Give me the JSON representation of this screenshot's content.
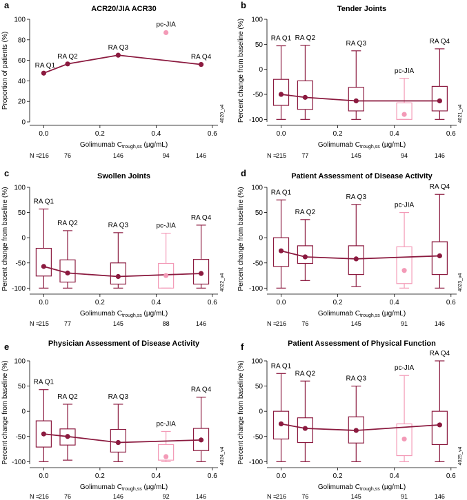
{
  "colors": {
    "ra": "#8b1a3f",
    "pcjia": "#f39ab7",
    "axis": "#000000"
  },
  "chart_data": [
    {
      "letter": "a",
      "type": "line",
      "title": "ACR20/JIA ACR30",
      "ylabel": "Proportion of patients (%)",
      "xlabel_main": "Golimumab C",
      "xlabel_sub": "trough,ss",
      "xlabel_unit": " (µg/mL)",
      "xlim": [
        -0.05,
        0.62
      ],
      "ylim": [
        0,
        100
      ],
      "xticks": [
        0.0,
        0.2,
        0.4,
        0.6
      ],
      "xtick_labels": [
        "0.0",
        "0.2",
        "0.4",
        "0.6"
      ],
      "yticks": [
        0,
        20,
        40,
        60,
        80,
        100
      ],
      "code": "4020_v4",
      "n_label": "N =",
      "ra_groups": [
        {
          "label": "RA Q1",
          "x": 0.0,
          "value": 47.5,
          "n": "216"
        },
        {
          "label": "RA Q2",
          "x": 0.085,
          "value": 56.5,
          "n": "76"
        },
        {
          "label": "RA Q3",
          "x": 0.265,
          "value": 65.0,
          "n": "146"
        },
        {
          "label": "RA Q4",
          "x": 0.56,
          "value": 56.0,
          "n": "146"
        }
      ],
      "pcjia": {
        "label": "pc-JIA",
        "x": 0.435,
        "value": 87.0,
        "n": "94"
      }
    },
    {
      "letter": "b",
      "type": "box",
      "title": "Tender Joints",
      "ylabel": "Percent change from baseline (%)",
      "xlabel_main": "Golimumab C",
      "xlabel_sub": "trough,ss",
      "xlabel_unit": " (µg/mL)",
      "xlim": [
        -0.05,
        0.62
      ],
      "ylim": [
        -105,
        100
      ],
      "xticks": [
        0.0,
        0.2,
        0.4,
        0.6
      ],
      "xtick_labels": [
        "0.0",
        "0.2",
        "0.4",
        "0.6"
      ],
      "yticks": [
        -100,
        -50,
        0,
        50,
        100
      ],
      "code": "4021_v4",
      "n_label": "N =",
      "ra_groups": [
        {
          "label": "RA Q1",
          "x": 0.0,
          "min": -100,
          "q1": -72,
          "median": -50,
          "q3": -20,
          "max": 47,
          "n": "215"
        },
        {
          "label": "RA Q2",
          "x": 0.085,
          "min": -100,
          "q1": -80,
          "median": -56,
          "q3": -23,
          "max": 48,
          "n": "77"
        },
        {
          "label": "RA Q3",
          "x": 0.265,
          "min": -100,
          "q1": -83,
          "median": -63,
          "q3": -36,
          "max": 37,
          "n": "145"
        },
        {
          "label": "RA Q4",
          "x": 0.56,
          "min": -100,
          "q1": -83,
          "median": -63,
          "q3": -34,
          "max": 41,
          "n": "146"
        }
      ],
      "pcjia": {
        "label": "pc-JIA",
        "x": 0.435,
        "min": -100,
        "q1": -100,
        "median": -90,
        "q3": -67,
        "max": -18,
        "n": "94"
      }
    },
    {
      "letter": "c",
      "type": "box",
      "title": "Swollen Joints",
      "ylabel": "Percent change from baseline (%)",
      "xlabel_main": "Golimumab C",
      "xlabel_sub": "trough,ss",
      "xlabel_unit": " (µg/mL)",
      "xlim": [
        -0.05,
        0.62
      ],
      "ylim": [
        -105,
        100
      ],
      "xticks": [
        0.0,
        0.2,
        0.4,
        0.6
      ],
      "xtick_labels": [
        "0.0",
        "0.2",
        "0.4",
        "0.6"
      ],
      "yticks": [
        -100,
        -50,
        0,
        50,
        100
      ],
      "code": "4022_v4",
      "n_label": "N =",
      "ra_groups": [
        {
          "label": "RA Q1",
          "x": 0.0,
          "min": -100,
          "q1": -76,
          "median": -57,
          "q3": -21,
          "max": 57,
          "n": "215"
        },
        {
          "label": "RA Q2",
          "x": 0.085,
          "min": -100,
          "q1": -88,
          "median": -70,
          "q3": -44,
          "max": 14,
          "n": "77"
        },
        {
          "label": "RA Q3",
          "x": 0.265,
          "min": -100,
          "q1": -92,
          "median": -77,
          "q3": -50,
          "max": 10,
          "n": "145"
        },
        {
          "label": "RA Q4",
          "x": 0.56,
          "min": -100,
          "q1": -92,
          "median": -71,
          "q3": -43,
          "max": 25,
          "n": "146"
        }
      ],
      "pcjia": {
        "label": "pc-JIA",
        "x": 0.435,
        "min": -100,
        "q1": -100,
        "median": -75,
        "q3": -51,
        "max": 9,
        "n": "88"
      }
    },
    {
      "letter": "d",
      "type": "box",
      "title": "Patient Assessment of Disease Activity",
      "ylabel": "Percent change from baseline (%)",
      "xlabel_main": "Golimumab C",
      "xlabel_sub": "trough,ss",
      "xlabel_unit": " (µg/mL)",
      "xlim": [
        -0.05,
        0.62
      ],
      "ylim": [
        -105,
        100
      ],
      "xticks": [
        0.0,
        0.2,
        0.4,
        0.6
      ],
      "xtick_labels": [
        "0.0",
        "0.2",
        "0.4",
        "0.6"
      ],
      "yticks": [
        -100,
        -50,
        0,
        50,
        100
      ],
      "code": "4023_v4",
      "n_label": "N =",
      "ra_groups": [
        {
          "label": "RA Q1",
          "x": 0.0,
          "min": -100,
          "q1": -57,
          "median": -26,
          "q3": 0,
          "max": 75,
          "n": "216"
        },
        {
          "label": "RA Q2",
          "x": 0.085,
          "min": -85,
          "q1": -51,
          "median": -38,
          "q3": -16,
          "max": 36,
          "n": "76"
        },
        {
          "label": "RA Q3",
          "x": 0.265,
          "min": -97,
          "q1": -73,
          "median": -42,
          "q3": -16,
          "max": 66,
          "n": "145"
        },
        {
          "label": "RA Q4",
          "x": 0.56,
          "min": -100,
          "q1": -73,
          "median": -36,
          "q3": -8,
          "max": 86,
          "n": "146"
        }
      ],
      "pcjia": {
        "label": "pc-JIA",
        "x": 0.435,
        "min": -100,
        "q1": -91,
        "median": -65,
        "q3": -18,
        "max": 50,
        "n": "91"
      }
    },
    {
      "letter": "e",
      "type": "box",
      "title": "Physician Assessment of Disease Activity",
      "ylabel": "Percent change from baseline (%)",
      "xlabel_main": "Golimumab C",
      "xlabel_sub": "trough,ss",
      "xlabel_unit": " (µg/mL)",
      "xlim": [
        -0.05,
        0.62
      ],
      "ylim": [
        -105,
        100
      ],
      "xticks": [
        0.0,
        0.2,
        0.4,
        0.6
      ],
      "xtick_labels": [
        "0.0",
        "0.2",
        "0.4",
        "0.6"
      ],
      "yticks": [
        -100,
        -50,
        0,
        50,
        100
      ],
      "code": "4024_v4",
      "n_label": "N =",
      "ra_groups": [
        {
          "label": "RA Q1",
          "x": 0.0,
          "min": -100,
          "q1": -71,
          "median": -45,
          "q3": -19,
          "max": 43,
          "n": "216"
        },
        {
          "label": "RA Q2",
          "x": 0.085,
          "min": -97,
          "q1": -67,
          "median": -50,
          "q3": -35,
          "max": 14,
          "n": "76"
        },
        {
          "label": "RA Q3",
          "x": 0.265,
          "min": -100,
          "q1": -81,
          "median": -62,
          "q3": -36,
          "max": 14,
          "n": "146"
        },
        {
          "label": "RA Q4",
          "x": 0.56,
          "min": -100,
          "q1": -78,
          "median": -57,
          "q3": -34,
          "max": 28,
          "n": "146"
        }
      ],
      "pcjia": {
        "label": "pc-JIA",
        "x": 0.435,
        "min": -100,
        "q1": -97,
        "median": -90,
        "q3": -66,
        "max": -40,
        "n": "92"
      }
    },
    {
      "letter": "f",
      "type": "box",
      "title": "Patient Assessment of Physical Function",
      "ylabel": "Percent change from baseline (%)",
      "xlabel_main": "Golimumab C",
      "xlabel_sub": "trough,ss",
      "xlabel_unit": " (µg/mL)",
      "xlim": [
        -0.05,
        0.62
      ],
      "ylim": [
        -105,
        100
      ],
      "xticks": [
        0.0,
        0.2,
        0.4,
        0.6
      ],
      "xtick_labels": [
        "0.0",
        "0.2",
        "0.4",
        "0.6"
      ],
      "yticks": [
        -100,
        -50,
        0,
        50,
        100
      ],
      "code": "4025_v4",
      "n_label": "N =",
      "ra_groups": [
        {
          "label": "RA Q1",
          "x": 0.0,
          "min": -100,
          "q1": -55,
          "median": -25,
          "q3": 0,
          "max": 75,
          "n": "216"
        },
        {
          "label": "RA Q2",
          "x": 0.085,
          "min": -100,
          "q1": -62,
          "median": -34,
          "q3": -13,
          "max": 60,
          "n": "76"
        },
        {
          "label": "RA Q3",
          "x": 0.265,
          "min": -100,
          "q1": -63,
          "median": -38,
          "q3": -11,
          "max": 50,
          "n": "145"
        },
        {
          "label": "RA Q4",
          "x": 0.56,
          "min": -100,
          "q1": -66,
          "median": -27,
          "q3": 0,
          "max": 100,
          "n": "146"
        }
      ],
      "pcjia": {
        "label": "pc-JIA",
        "x": 0.435,
        "min": -100,
        "q1": -88,
        "median": -55,
        "q3": -25,
        "max": 71,
        "n": "91"
      }
    }
  ]
}
